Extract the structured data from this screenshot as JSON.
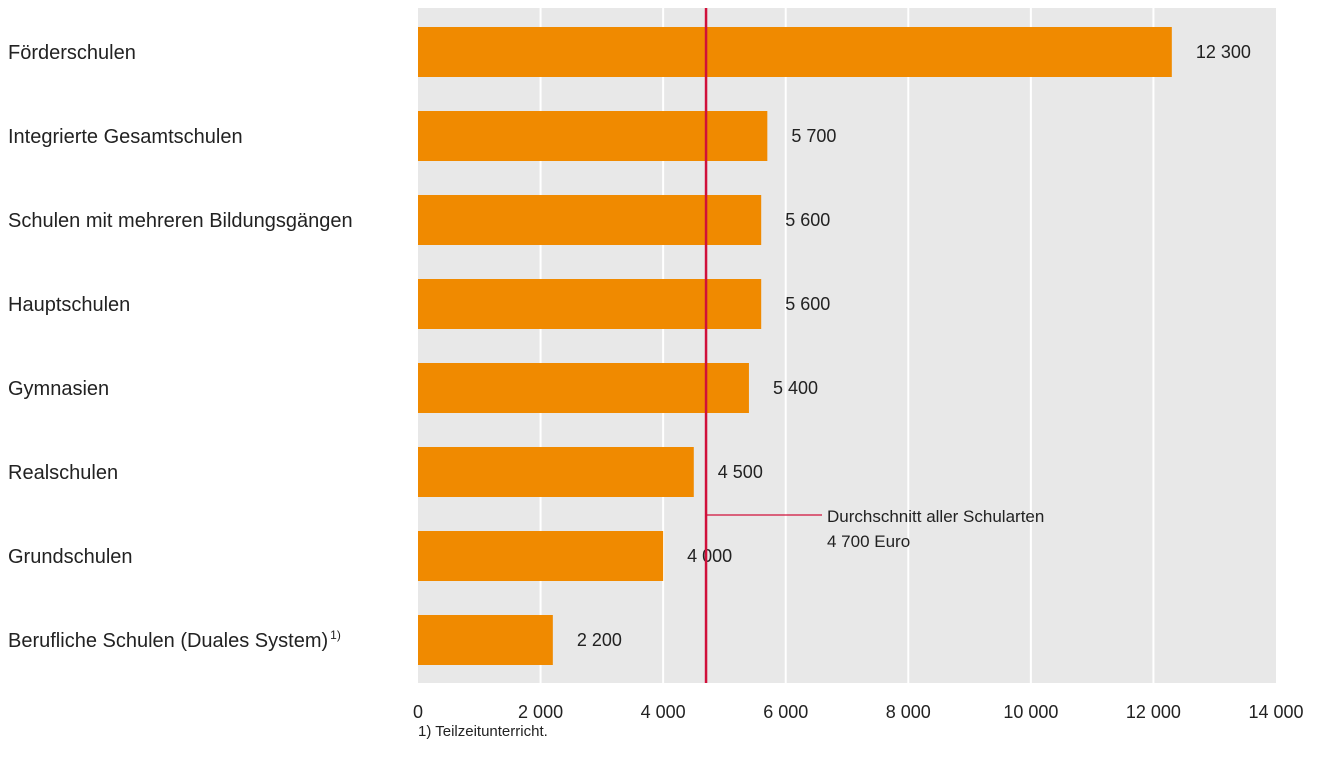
{
  "chart_data": {
    "type": "bar",
    "orientation": "horizontal",
    "categories": [
      "Förderschulen",
      "Integrierte Gesamtschulen",
      "Schulen mit mehreren Bildungsgängen",
      "Hauptschulen",
      "Gymnasien",
      "Realschulen",
      "Grundschulen",
      "Berufliche Schulen (Duales System)"
    ],
    "category_superscripts": [
      "",
      "",
      "",
      "",
      "",
      "",
      "",
      "1)"
    ],
    "values": [
      12300,
      5700,
      5600,
      5600,
      5400,
      4500,
      4000,
      2200
    ],
    "value_labels": [
      "12 300",
      "5 700",
      "5 600",
      "5 600",
      "5 400",
      "4 500",
      "4 000",
      "2 200"
    ],
    "xlim": [
      0,
      14000
    ],
    "xticks": [
      0,
      2000,
      4000,
      6000,
      8000,
      10000,
      12000,
      14000
    ],
    "xtick_labels": [
      "0",
      "2 000",
      "4 000",
      "6 000",
      "8 000",
      "10 000",
      "12 000",
      "14 000"
    ],
    "reference_line": {
      "value": 4700,
      "label_line1": "Durchschnitt aller Schularten",
      "label_line2": "4 700 Euro",
      "color": "#d0103a"
    },
    "bar_color": "#f08a00",
    "plot_background": "#e8e8e8",
    "grid": true,
    "footnote": "1) Teilzeitunterricht."
  }
}
